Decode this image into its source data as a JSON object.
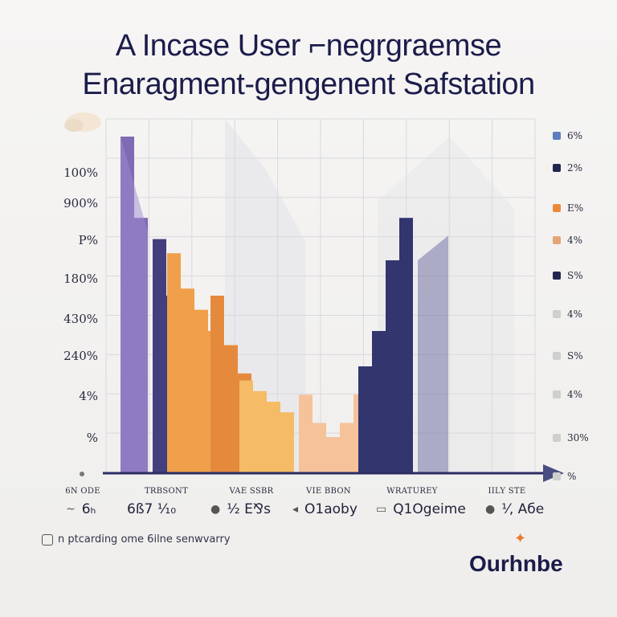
{
  "title": {
    "line1": "A   Incase User ⌐negrgraemse",
    "line2": "Enaragment-gengenent  Safstation"
  },
  "chart_data": {
    "type": "bar",
    "title": "A   Incase User ⌐negrgraemse Enaragment-gengenent  Safstation",
    "ytick_labels": [
      "100%",
      "900%",
      "P%",
      "180%",
      "430%",
      "240%",
      "4%",
      "%"
    ],
    "xcategories": [
      "6N ODE",
      "TRBSONT",
      "VAE SSBR",
      "VIE BBON",
      "WRATUREY",
      "IILY STE"
    ],
    "series": [
      {
        "color": "#7f6ab4",
        "values": [
          95,
          72
        ]
      },
      {
        "color": "#433f7e",
        "values": [
          66,
          50
        ]
      },
      {
        "color": "#f0a04a",
        "values": [
          62,
          52,
          46,
          40
        ]
      },
      {
        "color": "#e58a3c",
        "values": [
          50,
          36,
          28
        ]
      },
      {
        "color": "#f5bb66",
        "values": [
          26,
          23,
          20,
          17
        ]
      },
      {
        "color": "#f6c29a",
        "values": [
          22,
          14,
          10,
          14,
          22
        ]
      },
      {
        "color": "#32356e",
        "values": [
          30,
          40,
          60,
          72
        ]
      }
    ],
    "legend": [
      "6%",
      "2%",
      "E%",
      "4%",
      "S%",
      "4%",
      "S%",
      "4%",
      "30%",
      "%"
    ],
    "legend_colors": [
      "#5b7fbd",
      "#22264f",
      "#e88a3a",
      "#e3a47a",
      "#22264f",
      "#cfcfcf",
      "#cfcfcf",
      "#cfcfcf",
      "#cfcfcf",
      "#cfcfcf"
    ]
  },
  "metrics": [
    {
      "icon": "~",
      "value": "6ₕ"
    },
    {
      "icon": "",
      "value": "6ß7 ¹⁄₁₀"
    },
    {
      "icon": "●",
      "value": "¹⁄₂ E⅋s"
    },
    {
      "icon": "◂",
      "value": "O1aoby"
    },
    {
      "icon": "▭",
      "value": "Q1Ogeime"
    },
    {
      "icon": "●",
      "value": "¹⁄, Aбe"
    }
  ],
  "footnote": "n ptcarding ome 6ilne senwvarry",
  "brand": "Ourhnbe"
}
